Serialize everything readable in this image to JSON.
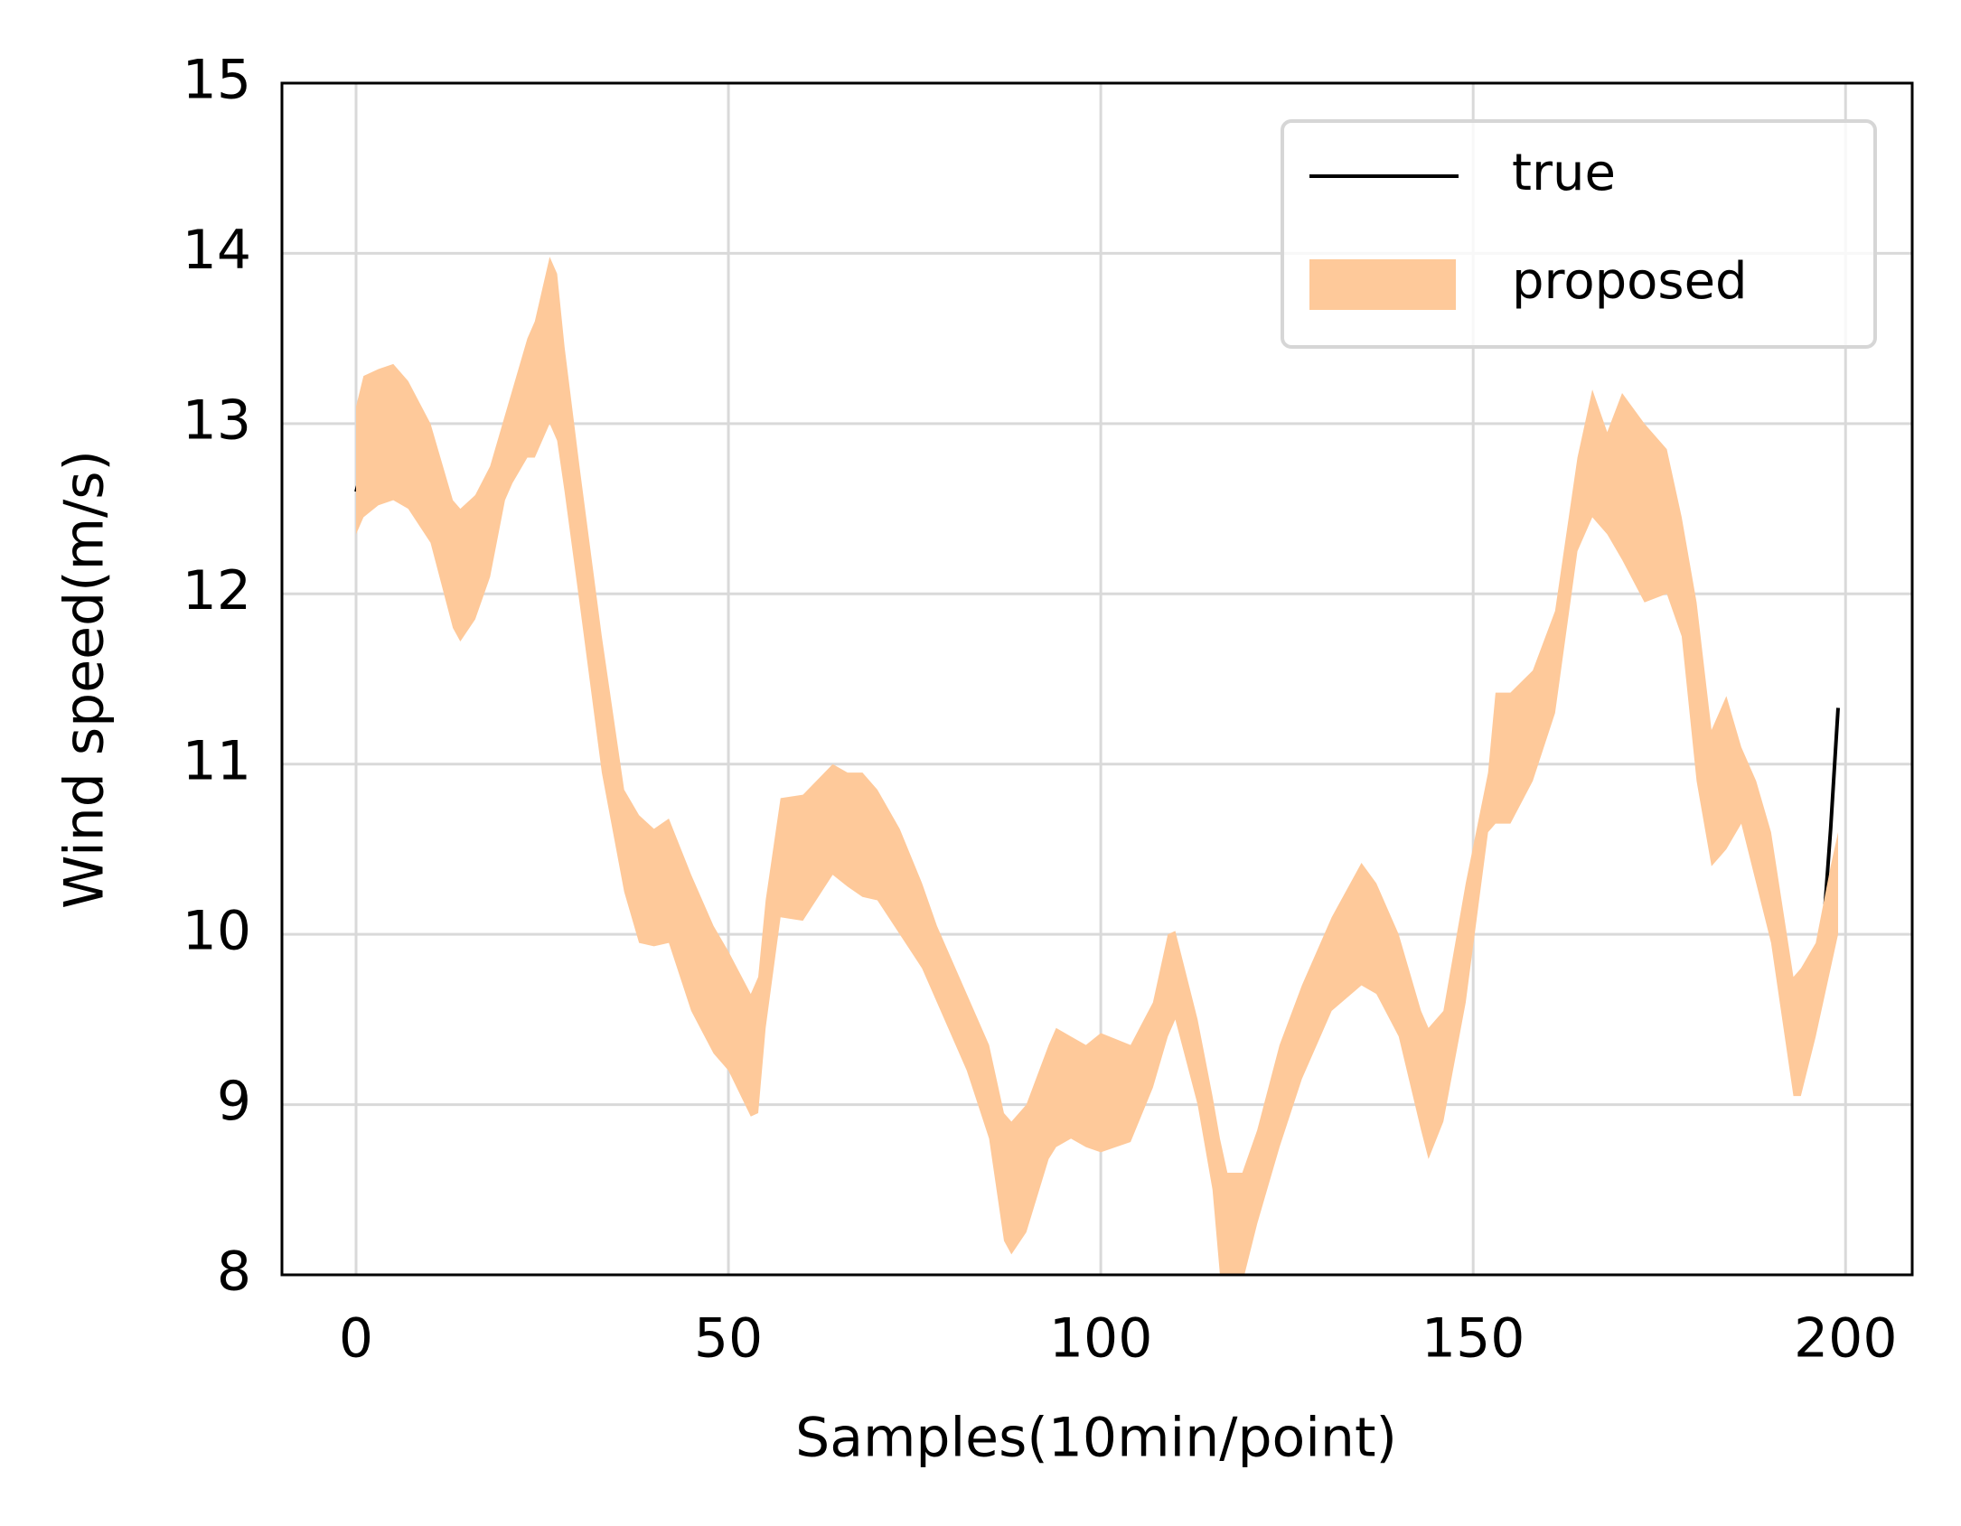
{
  "chart_data": {
    "type": "line",
    "xlabel": "Samples(10min/point)",
    "ylabel": "Wind speed(m/s)",
    "xlim": [
      -9.95,
      208.95
    ],
    "ylim": [
      8,
      15
    ],
    "xticks": [
      0,
      50,
      100,
      150,
      200
    ],
    "yticks": [
      8,
      9,
      10,
      11,
      12,
      13,
      14,
      15
    ],
    "grid": true,
    "legend": "upper right",
    "series": [
      {
        "name": "true",
        "color": "#000000",
        "x": [
          0,
          1,
          2,
          3,
          4,
          5,
          6,
          7,
          8,
          9,
          10,
          11,
          12,
          13,
          14,
          15,
          16,
          17,
          18,
          19,
          20,
          21,
          22,
          23,
          24,
          25,
          26,
          27,
          28,
          29,
          30,
          31,
          32,
          33,
          34,
          35,
          36,
          37,
          38,
          39,
          40,
          41,
          42,
          43,
          44,
          45,
          46,
          47,
          48,
          49,
          50,
          51,
          52,
          53,
          54,
          55,
          56,
          57,
          58,
          59,
          60,
          61,
          62,
          63,
          64,
          65,
          66,
          67,
          68,
          69,
          70,
          71,
          72,
          73,
          74,
          75,
          76,
          77,
          78,
          79,
          80,
          81,
          82,
          83,
          84,
          85,
          86,
          87,
          88,
          89,
          90,
          91,
          92,
          93,
          94,
          95,
          96,
          97,
          98,
          99,
          100,
          101,
          102,
          103,
          104,
          105,
          106,
          107,
          108,
          109,
          110,
          111,
          112,
          113,
          114,
          115,
          116,
          117,
          118,
          119,
          120,
          121,
          122,
          123,
          124,
          125,
          126,
          127,
          128,
          129,
          130,
          131,
          132,
          133,
          134,
          135,
          136,
          137,
          138,
          139,
          140,
          141,
          142,
          143,
          144,
          145,
          146,
          147,
          148,
          149,
          150,
          151,
          152,
          153,
          154,
          155,
          156,
          157,
          158,
          159,
          160,
          161,
          162,
          163,
          164,
          165,
          166,
          167,
          168,
          169,
          170,
          171,
          172,
          173,
          174,
          175,
          176,
          177,
          178,
          179,
          180,
          181,
          182,
          183,
          184,
          185,
          186,
          187,
          188,
          189,
          190,
          191,
          192,
          193,
          194,
          195,
          196,
          197,
          198,
          199
        ],
        "values": [
          12.6,
          12.75,
          12.73,
          12.76,
          12.82,
          12.79,
          12.77,
          12.74,
          12.63,
          12.58,
          12.43,
          12.32,
          12.25,
          12.12,
          12.15,
          12.2,
          12.25,
          12.4,
          12.52,
          12.62,
          12.8,
          12.93,
          12.98,
          12.97,
          13.04,
          13.22,
          13.29,
          13.18,
          12.85,
          12.5,
          12.25,
          11.9,
          11.55,
          11.38,
          11.15,
          10.83,
          10.64,
          10.53,
          10.46,
          10.43,
          10.5,
          10.46,
          10.46,
          10.37,
          10.22,
          10.07,
          9.97,
          9.92,
          9.92,
          9.87,
          9.77,
          9.65,
          9.52,
          9.38,
          9.5,
          9.9,
          10.3,
          10.53,
          10.58,
          10.56,
          10.45,
          10.48,
          10.51,
          10.58,
          10.65,
          10.71,
          10.64,
          10.62,
          10.6,
          10.63,
          10.6,
          10.53,
          10.52,
          10.44,
          10.36,
          10.22,
          10.1,
          9.97,
          9.84,
          9.75,
          9.6,
          9.47,
          9.42,
          9.4,
          9.33,
          9.1,
          8.88,
          8.71,
          8.68,
          8.69,
          8.74,
          8.82,
          8.95,
          9.12,
          9.18,
          9.24,
          9.23,
          9.18,
          9.11,
          9.17,
          9.23,
          9.25,
          9.23,
          9.16,
          9.14,
          9.19,
          9.25,
          9.38,
          9.58,
          9.72,
          9.74,
          9.62,
          9.43,
          9.24,
          9.04,
          8.84,
          8.6,
          8.35,
          8.33,
          8.37,
          8.47,
          8.63,
          8.82,
          8.95,
          9.03,
          9.08,
          9.2,
          9.37,
          9.54,
          9.66,
          9.77,
          9.84,
          9.92,
          9.99,
          10.03,
          10.05,
          10.01,
          9.96,
          9.9,
          9.84,
          9.76,
          9.68,
          9.52,
          9.3,
          9.24,
          9.27,
          9.41,
          9.62,
          9.83,
          10.03,
          10.25,
          10.6,
          10.86,
          11.03,
          11.09,
          11.03,
          10.99,
          11.06,
          11.16,
          11.25,
          11.45,
          11.66,
          11.97,
          12.25,
          12.44,
          12.58,
          12.7,
          12.76,
          12.52,
          12.33,
          12.46,
          12.63,
          12.5,
          12.22,
          12.18,
          12.37,
          12.37,
          12.26,
          12.1,
          11.88,
          11.4,
          10.93,
          10.67,
          10.63,
          10.9,
          11.08,
          11.05,
          10.8,
          10.72,
          10.61,
          10.45,
          10.14,
          9.78,
          9.48,
          9.47,
          9.6,
          9.91,
          10.02,
          10.62,
          11.33
        ]
      },
      {
        "name": "proposed",
        "color": "#fec99a",
        "kind": "band",
        "x": [
          0,
          1,
          3,
          5,
          7,
          10,
          13,
          14,
          16,
          18,
          20,
          21,
          23,
          24,
          26,
          27,
          28,
          30,
          33,
          36,
          38,
          40,
          42,
          45,
          48,
          50,
          53,
          54,
          55,
          57,
          60,
          64,
          66,
          68,
          70,
          73,
          76,
          78,
          82,
          85,
          87,
          88,
          90,
          93,
          94,
          96,
          98,
          100,
          104,
          107,
          109,
          110,
          113,
          115,
          116,
          117,
          119,
          121,
          124,
          127,
          131,
          135,
          137,
          140,
          143,
          144,
          146,
          149,
          152,
          153,
          155,
          158,
          161,
          164,
          166,
          168,
          170,
          173,
          176,
          178,
          180,
          182,
          184,
          186,
          188,
          190,
          193,
          194,
          196,
          198,
          199
        ],
        "lower": [
          12.35,
          12.45,
          12.52,
          12.55,
          12.5,
          12.3,
          11.8,
          11.72,
          11.85,
          12.1,
          12.55,
          12.65,
          12.8,
          12.8,
          13.0,
          12.9,
          12.6,
          11.95,
          10.95,
          10.25,
          9.95,
          9.93,
          9.95,
          9.55,
          9.3,
          9.2,
          8.93,
          8.95,
          9.45,
          10.1,
          10.08,
          10.35,
          10.28,
          10.22,
          10.2,
          10.0,
          9.8,
          9.6,
          9.2,
          8.8,
          8.2,
          8.12,
          8.25,
          8.68,
          8.75,
          8.8,
          8.75,
          8.72,
          8.78,
          9.1,
          9.4,
          9.5,
          9.0,
          8.5,
          8.0,
          7.9,
          7.95,
          8.3,
          8.75,
          9.15,
          9.55,
          9.7,
          9.65,
          9.4,
          8.85,
          8.68,
          8.9,
          9.6,
          10.6,
          10.65,
          10.65,
          10.9,
          11.3,
          12.25,
          12.45,
          12.35,
          12.2,
          11.95,
          12.0,
          11.75,
          10.9,
          10.4,
          10.5,
          10.65,
          10.3,
          9.95,
          9.05,
          9.05,
          9.4,
          9.8,
          10.0
        ],
        "upper": [
          13.1,
          13.28,
          13.32,
          13.35,
          13.25,
          13.0,
          12.55,
          12.5,
          12.58,
          12.75,
          13.05,
          13.2,
          13.5,
          13.6,
          13.98,
          13.88,
          13.45,
          12.75,
          11.75,
          10.85,
          10.7,
          10.62,
          10.68,
          10.35,
          10.05,
          9.9,
          9.65,
          9.75,
          10.2,
          10.8,
          10.82,
          11.0,
          10.95,
          10.95,
          10.85,
          10.62,
          10.3,
          10.05,
          9.65,
          9.35,
          8.95,
          8.9,
          9.0,
          9.35,
          9.45,
          9.4,
          9.35,
          9.42,
          9.35,
          9.6,
          10.0,
          10.02,
          9.5,
          9.05,
          8.8,
          8.6,
          8.6,
          8.85,
          9.35,
          9.7,
          10.1,
          10.42,
          10.3,
          10.0,
          9.55,
          9.45,
          9.55,
          10.3,
          10.95,
          11.42,
          11.42,
          11.55,
          11.9,
          12.8,
          13.2,
          12.95,
          13.18,
          13.0,
          12.85,
          12.45,
          11.95,
          11.2,
          11.4,
          11.1,
          10.9,
          10.6,
          9.75,
          9.8,
          9.95,
          10.4,
          10.6
        ]
      }
    ]
  }
}
